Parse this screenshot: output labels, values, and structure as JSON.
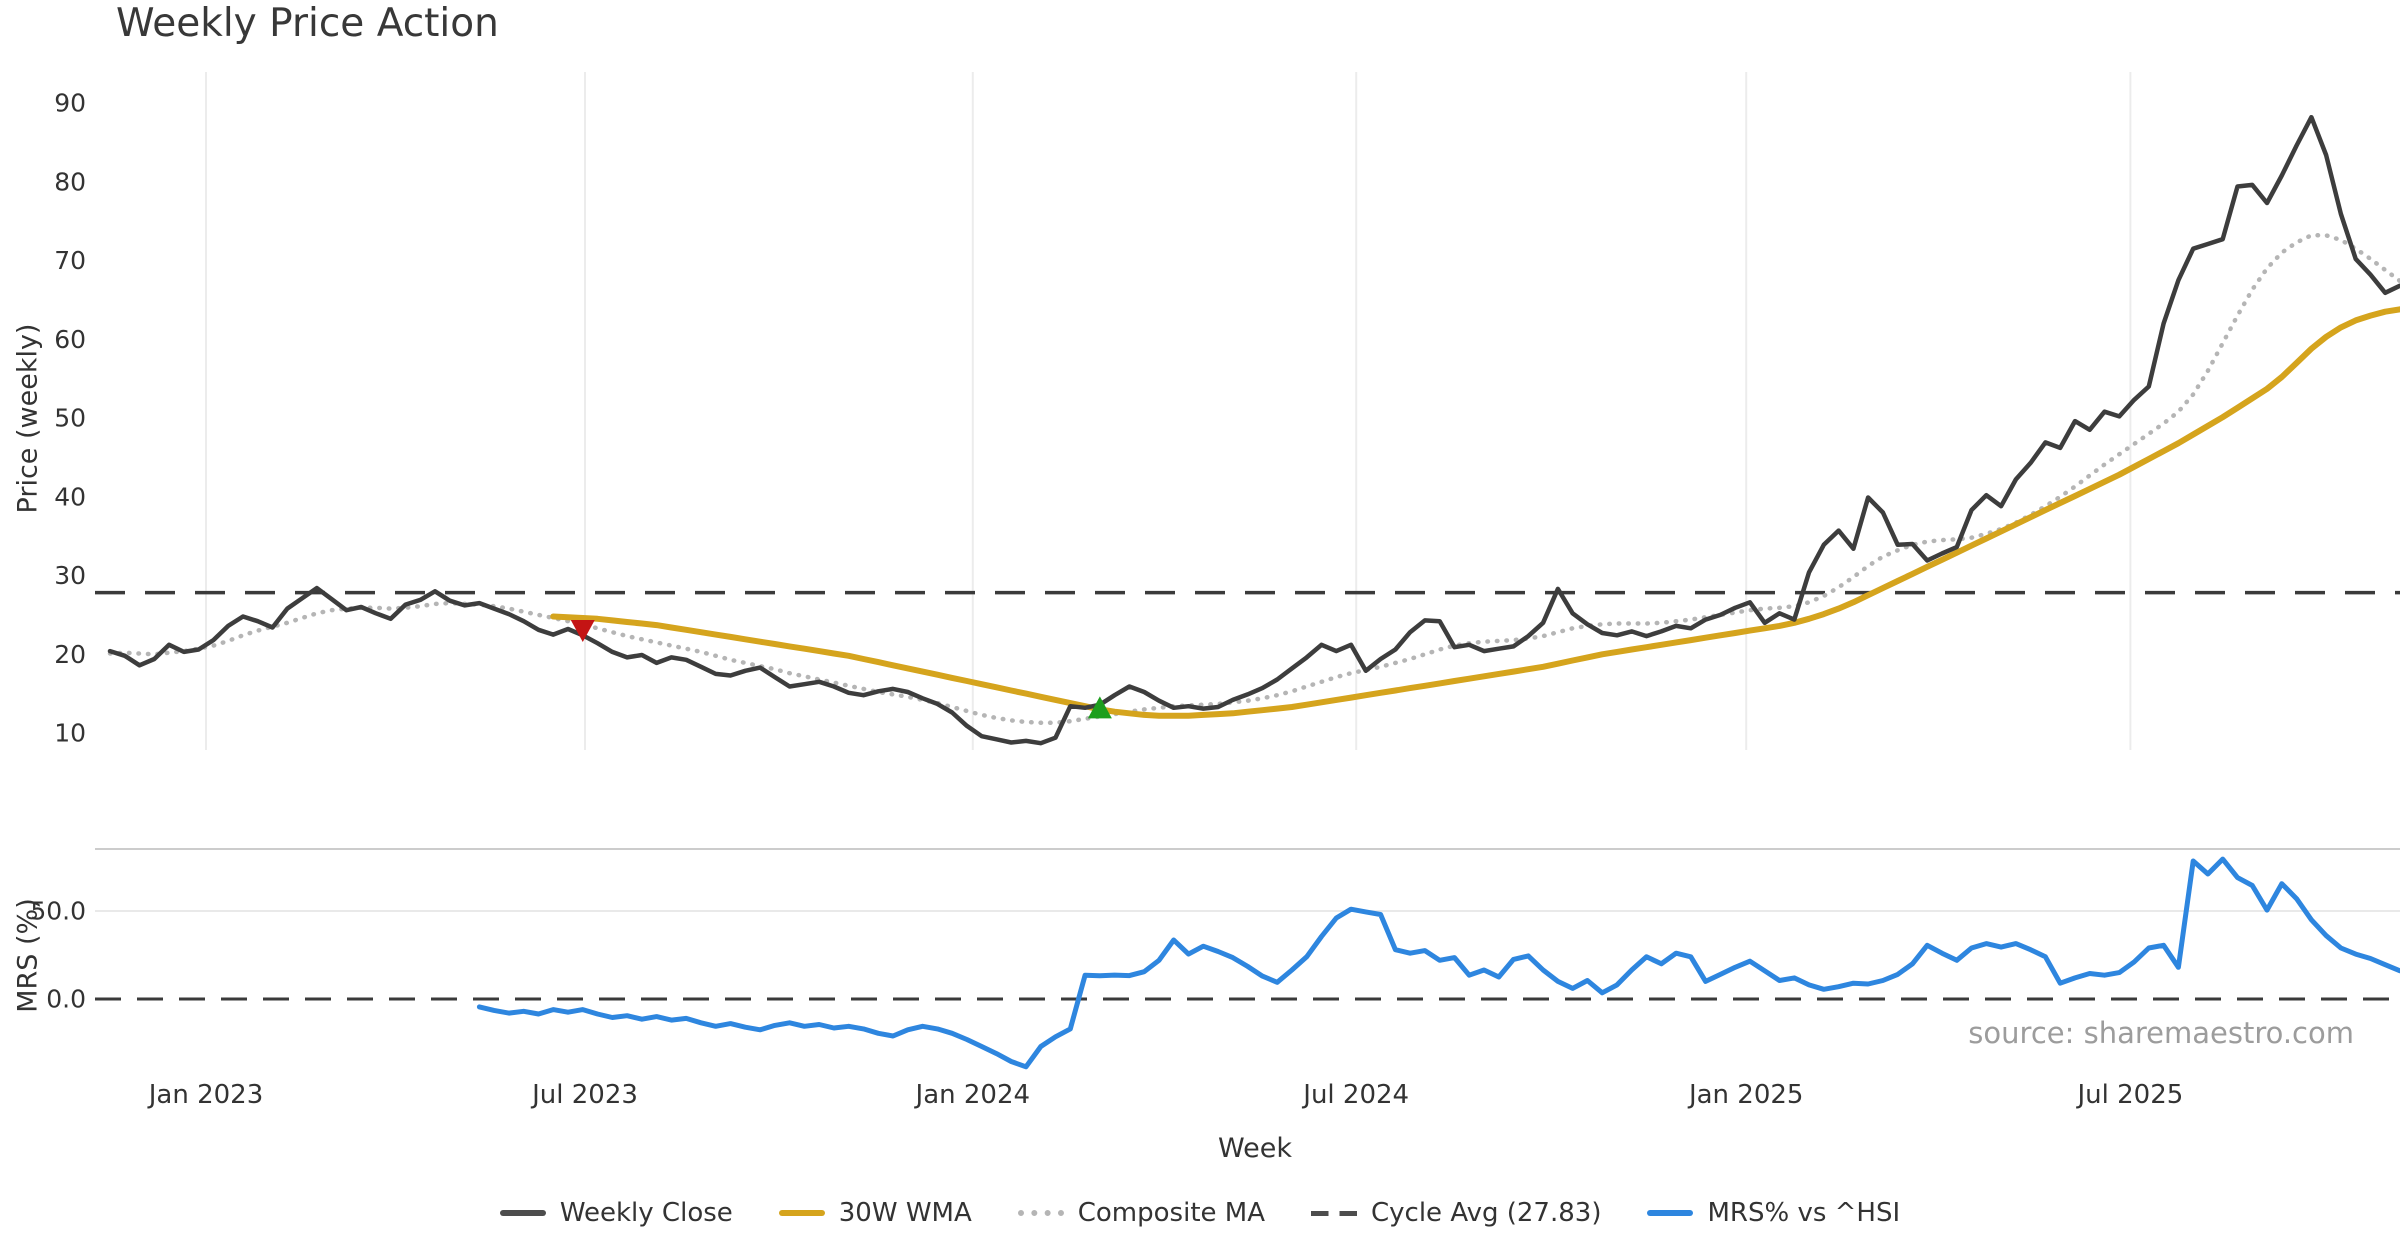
{
  "title": "Weekly Price Action",
  "source_note": "source: sharemaestro.com",
  "xlabel": "Week",
  "colors": {
    "grid": "#ececec",
    "panel_spine": "#cccccc",
    "light_grid": "#e9e9e9",
    "tick_text": "#333333",
    "close": "#3d3d3d",
    "wma": "#d5a41d",
    "composite": "#b5b5b5",
    "cycle": "#3a3a3a",
    "mrs": "#2e86df",
    "sell_marker": "#c41414",
    "buy_marker": "#1d9e1d"
  },
  "legend": [
    {
      "label": "Weekly Close",
      "type": "solid",
      "color": "#4d4d4d"
    },
    {
      "label": "30W WMA",
      "type": "solid",
      "color": "#d5a41d"
    },
    {
      "label": "Composite MA",
      "type": "dotted",
      "color": "#b5b5b5"
    },
    {
      "label": "Cycle Avg (27.83)",
      "type": "dashes",
      "color": "#4d4d4d"
    },
    {
      "label": "MRS% vs ^HSI",
      "type": "solid",
      "color": "#2e86df"
    }
  ],
  "chart_data": [
    {
      "type": "line",
      "panel": "price",
      "title": "Weekly Price Action",
      "ylabel": "Price (weekly)",
      "xlabel": "Week",
      "ylim": [
        5,
        93
      ],
      "y_ticks": [
        90,
        80,
        70,
        60,
        50,
        40,
        30,
        20,
        10
      ],
      "x_ticks": [
        {
          "i": 6.5,
          "label": "Jan 2023"
        },
        {
          "i": 32.15,
          "label": "Jul 2023"
        },
        {
          "i": 58.4,
          "label": "Jan 2024"
        },
        {
          "i": 84.35,
          "label": "Jul 2024"
        },
        {
          "i": 110.75,
          "label": "Jan 2025"
        },
        {
          "i": 136.75,
          "label": "Jul 2025"
        }
      ],
      "cycle_avg": 27.83,
      "weeks_total": 156,
      "series": [
        {
          "name": "Composite MA",
          "style": "dotted",
          "color": "#b5b5b5",
          "width": 4.5,
          "start_index": 0,
          "values": [
            20.1,
            20.2,
            20.1,
            20.0,
            20.2,
            20.4,
            20.7,
            21.1,
            21.7,
            22.4,
            23.0,
            23.5,
            24.0,
            24.6,
            25.2,
            25.6,
            25.8,
            25.9,
            25.9,
            25.8,
            25.9,
            26.1,
            26.4,
            26.5,
            26.4,
            26.3,
            26.1,
            25.8,
            25.4,
            25.0,
            24.6,
            24.2,
            23.8,
            23.3,
            22.8,
            22.3,
            21.9,
            21.5,
            21.1,
            20.7,
            20.3,
            19.8,
            19.3,
            18.9,
            18.5,
            18.1,
            17.6,
            17.2,
            16.8,
            16.4,
            16.0,
            15.6,
            15.2,
            14.9,
            14.6,
            14.2,
            13.8,
            13.3,
            12.8,
            12.3,
            11.9,
            11.6,
            11.4,
            11.3,
            11.3,
            11.5,
            11.8,
            12.1,
            12.4,
            12.7,
            13.0,
            13.2,
            13.4,
            13.5,
            13.6,
            13.7,
            13.9,
            14.1,
            14.4,
            14.8,
            15.3,
            15.9,
            16.5,
            17.1,
            17.6,
            18.0,
            18.4,
            18.9,
            19.4,
            20.0,
            20.6,
            21.1,
            21.4,
            21.6,
            21.7,
            21.8,
            22.0,
            22.3,
            22.8,
            23.3,
            23.6,
            23.8,
            23.9,
            23.9,
            23.9,
            24.0,
            24.2,
            24.4,
            24.7,
            25.0,
            25.3,
            25.6,
            25.8,
            25.9,
            26.1,
            26.6,
            27.4,
            28.5,
            29.8,
            31.2,
            32.4,
            33.2,
            33.9,
            34.3,
            34.5,
            34.6,
            34.8,
            35.3,
            35.9,
            36.7,
            37.7,
            38.8,
            40.0,
            41.3,
            42.7,
            44.1,
            45.4,
            46.7,
            48.0,
            49.3,
            50.8,
            53.0,
            56.0,
            59.5,
            63.0,
            66.3,
            69.0,
            71.0,
            72.3,
            73.2,
            73.2,
            72.6,
            71.5,
            70.2,
            68.8,
            67.4
          ]
        },
        {
          "name": "30W WMA",
          "style": "solid",
          "color": "#d5a41d",
          "width": 6,
          "start_index": 30,
          "values": [
            24.8,
            24.7,
            24.6,
            24.5,
            24.3,
            24.1,
            23.9,
            23.7,
            23.4,
            23.1,
            22.8,
            22.5,
            22.2,
            21.9,
            21.6,
            21.3,
            21.0,
            20.7,
            20.4,
            20.1,
            19.8,
            19.4,
            19.0,
            18.6,
            18.2,
            17.8,
            17.4,
            17.0,
            16.6,
            16.2,
            15.8,
            15.4,
            15.0,
            14.6,
            14.2,
            13.8,
            13.4,
            13.0,
            12.7,
            12.5,
            12.3,
            12.2,
            12.2,
            12.2,
            12.3,
            12.4,
            12.5,
            12.7,
            12.9,
            13.1,
            13.3,
            13.6,
            13.9,
            14.2,
            14.5,
            14.8,
            15.1,
            15.4,
            15.7,
            16.0,
            16.3,
            16.6,
            16.9,
            17.2,
            17.5,
            17.8,
            18.1,
            18.4,
            18.8,
            19.2,
            19.6,
            20.0,
            20.3,
            20.6,
            20.9,
            21.2,
            21.5,
            21.8,
            22.1,
            22.4,
            22.7,
            23.0,
            23.3,
            23.6,
            24.0,
            24.5,
            25.1,
            25.8,
            26.6,
            27.5,
            28.4,
            29.3,
            30.2,
            31.1,
            32.0,
            32.9,
            33.8,
            34.7,
            35.6,
            36.5,
            37.4,
            38.3,
            39.2,
            40.1,
            41.0,
            41.9,
            42.8,
            43.8,
            44.8,
            45.8,
            46.8,
            47.9,
            49.0,
            50.1,
            51.3,
            52.5,
            53.7,
            55.2,
            57.0,
            58.8,
            60.3,
            61.5,
            62.4,
            63.0,
            63.5,
            63.8
          ]
        },
        {
          "name": "Weekly Close",
          "style": "solid",
          "color": "#3d3d3d",
          "width": 4.5,
          "start_index": 0,
          "values": [
            20.4,
            19.8,
            18.6,
            19.4,
            21.2,
            20.3,
            20.6,
            21.8,
            23.6,
            24.8,
            24.2,
            23.4,
            25.8,
            27.1,
            28.4,
            27.0,
            25.6,
            26.0,
            25.2,
            24.5,
            26.3,
            26.9,
            28.0,
            26.8,
            26.2,
            26.5,
            25.8,
            25.1,
            24.2,
            23.1,
            22.5,
            23.2,
            22.4,
            21.4,
            20.3,
            19.6,
            19.9,
            18.9,
            19.6,
            19.3,
            18.4,
            17.5,
            17.3,
            17.9,
            18.3,
            17.1,
            15.9,
            16.2,
            16.5,
            15.9,
            15.1,
            14.8,
            15.3,
            15.6,
            15.2,
            14.4,
            13.7,
            12.6,
            10.9,
            9.6,
            9.2,
            8.8,
            9.0,
            8.7,
            9.4,
            13.4,
            13.2,
            13.6,
            14.8,
            15.9,
            15.2,
            14.1,
            13.2,
            13.4,
            13.1,
            13.3,
            14.2,
            14.9,
            15.7,
            16.8,
            18.2,
            19.6,
            21.2,
            20.4,
            21.2,
            17.9,
            19.4,
            20.6,
            22.8,
            24.3,
            24.2,
            20.9,
            21.2,
            20.4,
            20.7,
            21.0,
            22.3,
            24.0,
            28.3,
            25.2,
            23.8,
            22.7,
            22.4,
            22.9,
            22.3,
            22.9,
            23.6,
            23.3,
            24.4,
            25.0,
            25.9,
            26.6,
            24.0,
            25.2,
            24.4,
            30.4,
            33.9,
            35.7,
            33.4,
            39.9,
            38.0,
            33.9,
            34.0,
            31.9,
            32.8,
            33.6,
            38.3,
            40.2,
            38.8,
            42.2,
            44.3,
            46.9,
            46.2,
            49.6,
            48.5,
            50.8,
            50.2,
            52.3,
            54.0,
            62.0,
            67.5,
            71.5,
            72.1,
            72.7,
            79.4,
            79.6,
            77.3,
            80.8,
            84.6,
            88.2,
            83.4,
            75.9,
            70.2,
            68.2,
            65.9,
            66.8
          ]
        }
      ],
      "markers": [
        {
          "name": "sell-signal",
          "shape": "triangle-down",
          "color": "#c41414",
          "i": 32,
          "value": 23.2
        },
        {
          "name": "buy-signal",
          "shape": "triangle-up",
          "color": "#1d9e1d",
          "i": 67,
          "value": 13.0
        }
      ]
    },
    {
      "type": "line",
      "panel": "mrs",
      "ylabel": "MRS (%)",
      "ylim": [
        -45,
        85
      ],
      "y_ticks": [
        {
          "v": 50,
          "label": "50.0"
        },
        {
          "v": 0,
          "label": "0.0"
        }
      ],
      "zero_line": 0,
      "top_gridline": 50,
      "series": [
        {
          "name": "MRS% vs ^HSI",
          "style": "solid",
          "color": "#2e86df",
          "width": 5,
          "start_index": 25,
          "values": [
            -4.5,
            -6.5,
            -8.0,
            -7.0,
            -8.5,
            -6.0,
            -7.5,
            -6.0,
            -8.5,
            -10.5,
            -9.5,
            -11.5,
            -10.0,
            -12.0,
            -11.0,
            -13.5,
            -15.5,
            -14.0,
            -16.0,
            -17.5,
            -15.0,
            -13.5,
            -15.5,
            -14.5,
            -16.5,
            -15.5,
            -17.0,
            -19.5,
            -21.0,
            -17.5,
            -15.5,
            -17.0,
            -19.5,
            -23.0,
            -27.0,
            -31.0,
            -35.5,
            -38.5,
            -27.0,
            -21.5,
            -17.0,
            13.5,
            13.2,
            13.6,
            13.3,
            15.5,
            22.0,
            33.5,
            25.5,
            30.0,
            27.0,
            23.5,
            18.5,
            13.0,
            9.5,
            16.5,
            24.0,
            35.5,
            46.0,
            51.0,
            49.5,
            48.0,
            28.0,
            26.0,
            27.5,
            22.0,
            23.5,
            13.5,
            16.5,
            12.5,
            22.5,
            24.5,
            16.5,
            10.0,
            6.0,
            10.5,
            3.5,
            8.0,
            16.5,
            24.0,
            20.0,
            26.0,
            24.0,
            10.0,
            14.0,
            18.0,
            21.5,
            16.0,
            10.5,
            12.0,
            8.0,
            5.5,
            7.0,
            9.0,
            8.5,
            10.5,
            14.0,
            20.0,
            30.5,
            26.0,
            22.0,
            29.0,
            31.5,
            29.5,
            31.5,
            28.0,
            24.0,
            9.0,
            12.0,
            14.5,
            13.5,
            15.0,
            21.0,
            29.0,
            30.5,
            18.0,
            78.4,
            71.0,
            79.5,
            69.0,
            64.5,
            50.5,
            65.5,
            57.0,
            45.0,
            36.0,
            29.0,
            25.5,
            23.0,
            19.5,
            16.0
          ]
        }
      ]
    }
  ]
}
